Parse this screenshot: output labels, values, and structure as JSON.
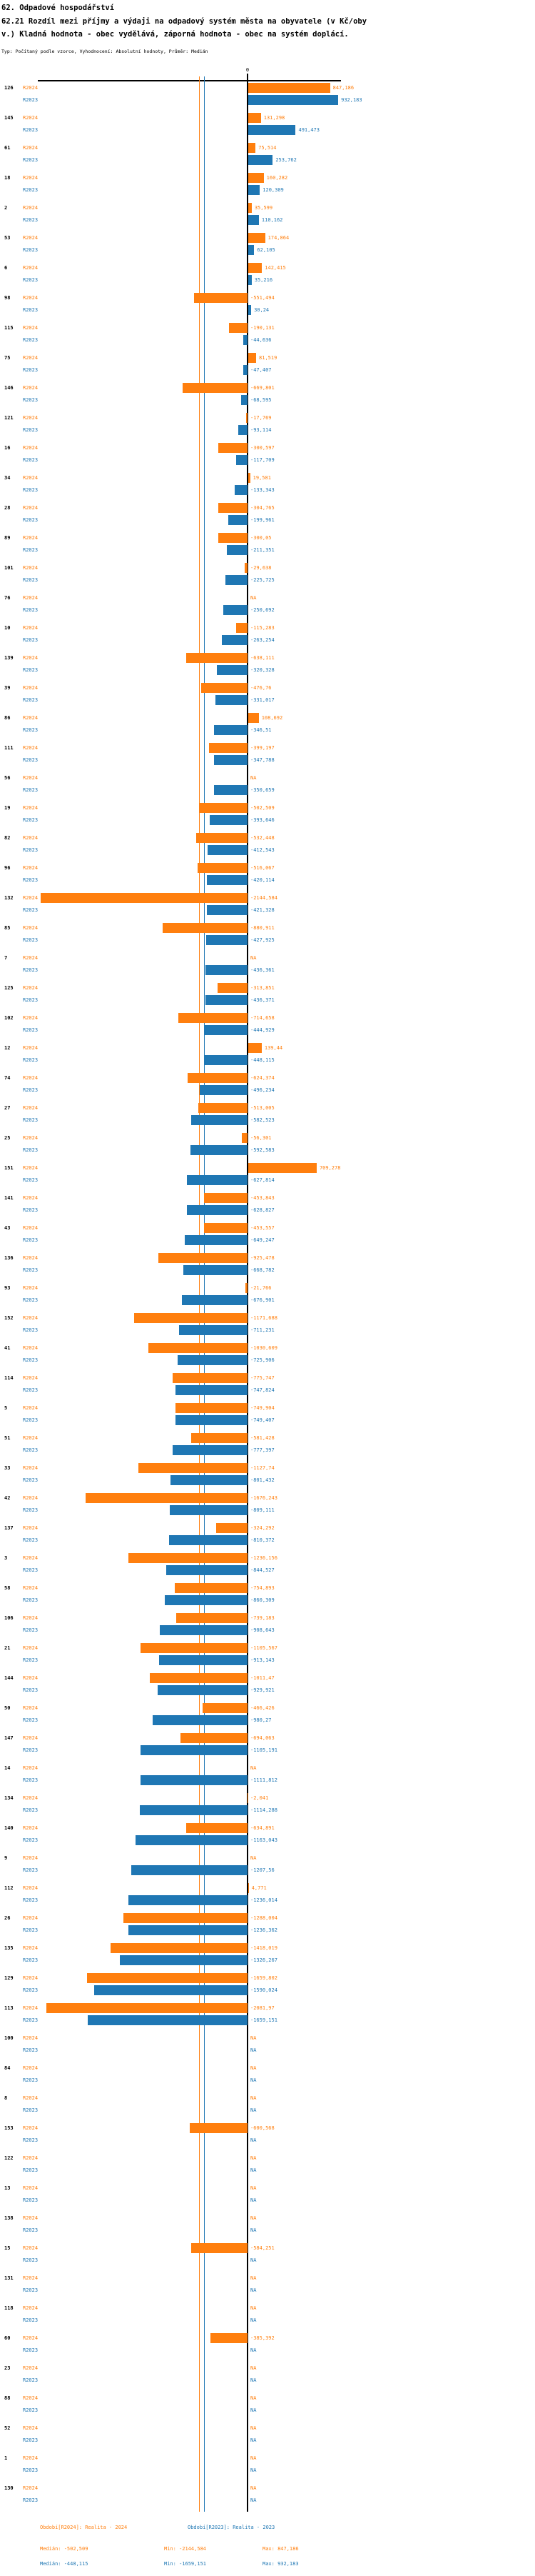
{
  "header": {
    "line1": "62. Odpadové hospodářství",
    "line2": "62.21 Rozdíl mezi příjmy a výdaji na odpadový systém města na obyvatele (v Kč/oby",
    "line3": "v.) Kladná hodnota - obec vydělává, záporná hodnota - obec na systém doplácí.",
    "meta": "Typ: Počítaný podle vzorce, Vyhodnocení: Absolutní hodnoty, Průměr: Medián"
  },
  "chart_data": {
    "type": "bar",
    "orientation": "horizontal",
    "unit": "Kč/obyv.",
    "decimal_separator": ",",
    "na_label": "NA",
    "axis": {
      "zero_tick": "0",
      "xmin": -2180,
      "xmax": 960,
      "grid": false
    },
    "series": [
      {
        "name": "R2024",
        "label": "R2024",
        "color": "#ff7f0e",
        "median": -502.509,
        "min": -2144.584,
        "max": 847.186
      },
      {
        "name": "R2023",
        "label": "R2023",
        "color": "#1f77b4",
        "median": -448.115,
        "min": -1659.151,
        "max": 932.183
      }
    ],
    "rows": [
      {
        "id": "126",
        "r2024": "847,186",
        "r2023": "932,183"
      },
      {
        "id": "145",
        "r2024": "131,298",
        "r2023": "491,473"
      },
      {
        "id": "61",
        "r2024": "75,514",
        "r2023": "253,762"
      },
      {
        "id": "18",
        "r2024": "160,282",
        "r2023": "120,309"
      },
      {
        "id": "2",
        "r2024": "35,599",
        "r2023": "110,162"
      },
      {
        "id": "53",
        "r2024": "174,864",
        "r2023": "62,105"
      },
      {
        "id": "6",
        "r2024": "142,415",
        "r2023": "35,216"
      },
      {
        "id": "98",
        "r2024": "-551,494",
        "r2023": "30,24"
      },
      {
        "id": "115",
        "r2024": "-190,131",
        "r2023": "-44,636"
      },
      {
        "id": "75",
        "r2024": "81,519",
        "r2023": "-47,407"
      },
      {
        "id": "146",
        "r2024": "-669,801",
        "r2023": "-68,595"
      },
      {
        "id": "121",
        "r2024": "-17,769",
        "r2023": "-93,114"
      },
      {
        "id": "16",
        "r2024": "-300,597",
        "r2023": "-117,709"
      },
      {
        "id": "34",
        "r2024": "19,581",
        "r2023": "-133,343"
      },
      {
        "id": "28",
        "r2024": "-304,765",
        "r2023": "-199,961"
      },
      {
        "id": "89",
        "r2024": "-300,05",
        "r2023": "-211,351"
      },
      {
        "id": "101",
        "r2024": "-29,638",
        "r2023": "-225,725"
      },
      {
        "id": "76",
        "r2024": "NA",
        "r2023": "-250,692"
      },
      {
        "id": "10",
        "r2024": "-115,283",
        "r2023": "-263,254"
      },
      {
        "id": "139",
        "r2024": "-638,111",
        "r2023": "-320,328"
      },
      {
        "id": "39",
        "r2024": "-476,76",
        "r2023": "-331,017"
      },
      {
        "id": "86",
        "r2024": "108,692",
        "r2023": "-346,51"
      },
      {
        "id": "111",
        "r2024": "-399,197",
        "r2023": "-347,788"
      },
      {
        "id": "56",
        "r2024": "NA",
        "r2023": "-350,659"
      },
      {
        "id": "19",
        "r2024": "-502,509",
        "r2023": "-393,646"
      },
      {
        "id": "82",
        "r2024": "-532,448",
        "r2023": "-412,543"
      },
      {
        "id": "96",
        "r2024": "-516,067",
        "r2023": "-420,114"
      },
      {
        "id": "132",
        "r2024": "-2144,584",
        "r2023": "-421,328"
      },
      {
        "id": "85",
        "r2024": "-880,911",
        "r2023": "-427,925"
      },
      {
        "id": "7",
        "r2024": "NA",
        "r2023": "-436,361"
      },
      {
        "id": "125",
        "r2024": "-313,851",
        "r2023": "-436,371"
      },
      {
        "id": "102",
        "r2024": "-714,658",
        "r2023": "-444,929"
      },
      {
        "id": "12",
        "r2024": "139,44",
        "r2023": "-448,115"
      },
      {
        "id": "74",
        "r2024": "-624,374",
        "r2023": "-496,234"
      },
      {
        "id": "27",
        "r2024": "-513,005",
        "r2023": "-582,523"
      },
      {
        "id": "25",
        "r2024": "-56,301",
        "r2023": "-592,583"
      },
      {
        "id": "151",
        "r2024": "709,278",
        "r2023": "-627,814"
      },
      {
        "id": "141",
        "r2024": "-453,843",
        "r2023": "-628,827"
      },
      {
        "id": "43",
        "r2024": "-453,557",
        "r2023": "-649,247"
      },
      {
        "id": "136",
        "r2024": "-925,478",
        "r2023": "-668,782"
      },
      {
        "id": "93",
        "r2024": "-21,766",
        "r2023": "-676,901"
      },
      {
        "id": "152",
        "r2024": "-1171,688",
        "r2023": "-711,231"
      },
      {
        "id": "41",
        "r2024": "-1030,609",
        "r2023": "-725,906"
      },
      {
        "id": "114",
        "r2024": "-775,747",
        "r2023": "-747,824"
      },
      {
        "id": "5",
        "r2024": "-749,904",
        "r2023": "-749,407"
      },
      {
        "id": "51",
        "r2024": "-581,428",
        "r2023": "-777,397"
      },
      {
        "id": "33",
        "r2024": "-1127,74",
        "r2023": "-801,432"
      },
      {
        "id": "42",
        "r2024": "-1676,243",
        "r2023": "-809,111"
      },
      {
        "id": "137",
        "r2024": "-324,292",
        "r2023": "-810,372"
      },
      {
        "id": "3",
        "r2024": "-1236,156",
        "r2023": "-844,527"
      },
      {
        "id": "58",
        "r2024": "-754,893",
        "r2023": "-860,309"
      },
      {
        "id": "106",
        "r2024": "-739,183",
        "r2023": "-908,643"
      },
      {
        "id": "21",
        "r2024": "-1105,567",
        "r2023": "-913,143"
      },
      {
        "id": "144",
        "r2024": "-1011,47",
        "r2023": "-929,921"
      },
      {
        "id": "50",
        "r2024": "-466,426",
        "r2023": "-980,27"
      },
      {
        "id": "147",
        "r2024": "-694,063",
        "r2023": "-1105,191"
      },
      {
        "id": "14",
        "r2024": "NA",
        "r2023": "-1111,812"
      },
      {
        "id": "134",
        "r2024": "-2,041",
        "r2023": "-1114,288"
      },
      {
        "id": "140",
        "r2024": "-634,891",
        "r2023": "-1163,043"
      },
      {
        "id": "9",
        "r2024": "NA",
        "r2023": "-1207,56"
      },
      {
        "id": "112",
        "r2024": "4,771",
        "r2023": "-1236,014"
      },
      {
        "id": "26",
        "r2024": "-1288,004",
        "r2023": "-1236,362"
      },
      {
        "id": "135",
        "r2024": "-1418,019",
        "r2023": "-1326,267"
      },
      {
        "id": "129",
        "r2024": "-1659,802",
        "r2023": "-1590,024"
      },
      {
        "id": "113",
        "r2024": "-2081,97",
        "r2023": "-1659,151"
      },
      {
        "id": "100",
        "r2024": "NA",
        "r2023": "NA"
      },
      {
        "id": "84",
        "r2024": "NA",
        "r2023": "NA"
      },
      {
        "id": "8",
        "r2024": "NA",
        "r2023": "NA"
      },
      {
        "id": "153",
        "r2024": "-600,568",
        "r2023": "NA"
      },
      {
        "id": "122",
        "r2024": "NA",
        "r2023": "NA"
      },
      {
        "id": "13",
        "r2024": "NA",
        "r2023": "NA"
      },
      {
        "id": "138",
        "r2024": "NA",
        "r2023": "NA"
      },
      {
        "id": "15",
        "r2024": "-584,251",
        "r2023": "NA"
      },
      {
        "id": "131",
        "r2024": "NA",
        "r2023": "NA"
      },
      {
        "id": "118",
        "r2024": "NA",
        "r2023": "NA"
      },
      {
        "id": "60",
        "r2024": "-385,392",
        "r2023": "NA"
      },
      {
        "id": "23",
        "r2024": "NA",
        "r2023": "NA"
      },
      {
        "id": "88",
        "r2024": "NA",
        "r2023": "NA"
      },
      {
        "id": "52",
        "r2024": "NA",
        "r2023": "NA"
      },
      {
        "id": "1",
        "r2024": "NA",
        "r2023": "NA"
      },
      {
        "id": "130",
        "r2024": "NA",
        "r2023": "NA"
      }
    ]
  },
  "footer": {
    "legend_2024": "Období[R2024]: Realita - 2024",
    "legend_2023": "Období[R2023]: Realita - 2023",
    "stats_2024": {
      "median": "Medián: -502,509",
      "min": "Min: -2144,584",
      "max": "Max: 847,186"
    },
    "stats_2023": {
      "median": "Medián: -448,115",
      "min": "Min: -1659,151",
      "max": "Max: 932,183"
    }
  }
}
